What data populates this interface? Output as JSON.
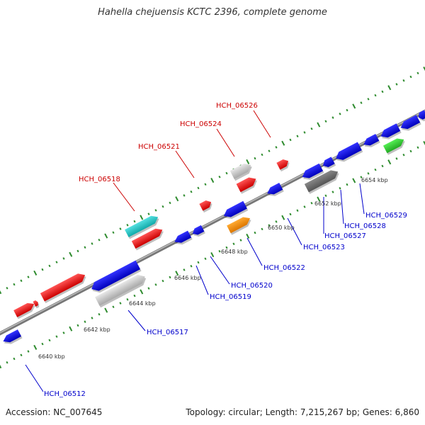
{
  "title": "Hahella chejuensis KCTC 2396, complete genome",
  "footer": {
    "accession": "Accession: NC_007645",
    "summary": "Topology: circular; Length: 7,215,267 bp; Genes: 6,860"
  },
  "colors": {
    "backbone": "#888888",
    "tick_dots": "#2e8b2e",
    "label_forward": "#cc0000",
    "label_reverse": "#0000cc"
  },
  "scale": {
    "unit": "kbp",
    "ticks": [
      "6640 kbp",
      "6642 kbp",
      "6644 kbp",
      "6646 kbp",
      "6648 kbp",
      "6650 kbp",
      "6652 kbp",
      "6654 kbp"
    ]
  },
  "gene_labels_forward": [
    "HCH_06518",
    "HCH_06521",
    "HCH_06524",
    "HCH_06526"
  ],
  "gene_labels_reverse": [
    "HCH_06512",
    "HCH_06517",
    "HCH_06519",
    "HCH_06520",
    "HCH_06522",
    "HCH_06523",
    "HCH_06527",
    "HCH_06528",
    "HCH_06529"
  ]
}
